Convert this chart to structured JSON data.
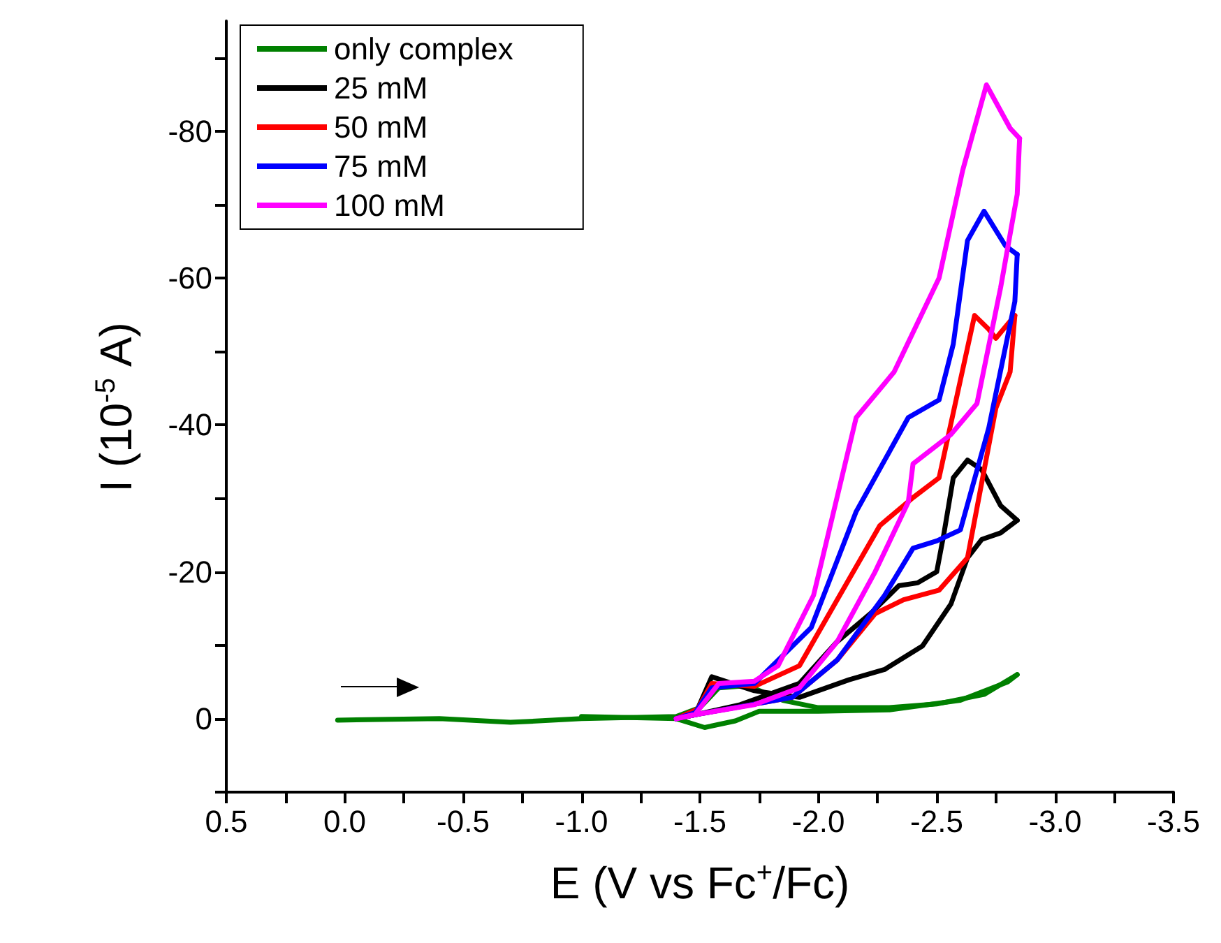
{
  "chart_data": {
    "type": "line",
    "xlabel": "E (V vs Fc$^{+}$/Fc)",
    "ylabel": "I (10$^{-5}$ A)",
    "xlim": [
      0.5,
      -3.5
    ],
    "xticks": [
      {
        "value": 0.5,
        "label": "0.5"
      },
      {
        "value": 0.25,
        "label": null
      },
      {
        "value": 0,
        "label": "0.0"
      },
      {
        "value": -0.25,
        "label": null
      },
      {
        "value": -0.5,
        "label": "-0.5"
      },
      {
        "value": -0.75,
        "label": null
      },
      {
        "value": -1,
        "label": "-1.0"
      },
      {
        "value": -1.25,
        "label": null
      },
      {
        "value": -1.5,
        "label": "-1.5"
      },
      {
        "value": -1.75,
        "label": null
      },
      {
        "value": -2,
        "label": "-2.0"
      },
      {
        "value": -2.25,
        "label": null
      },
      {
        "value": -2.5,
        "label": "-2.5"
      },
      {
        "value": -2.75,
        "label": null
      },
      {
        "value": -3,
        "label": "-3.0"
      },
      {
        "value": -3.25,
        "label": null
      },
      {
        "value": -3.5,
        "label": "-3.5"
      }
    ],
    "ylim": [
      10,
      -95
    ],
    "yticks": [
      {
        "value": 10,
        "label": null
      },
      0,
      {
        "value": -10,
        "label": null
      },
      -20,
      {
        "value": -30,
        "label": null
      },
      -40,
      {
        "value": -50,
        "label": null
      },
      -60,
      {
        "value": -70,
        "label": null
      },
      -80,
      {
        "value": -90,
        "label": null
      }
    ],
    "grid": false,
    "legend": "top left",
    "marker": "none",
    "line_style": "solid",
    "series": [
      {
        "name": "only complex",
        "color": "#008000",
        "x": [
          0.03,
          -0.4,
          -0.7,
          -1.0,
          -1.4,
          -1.5,
          -1.58,
          -1.7,
          -1.85,
          -2.0,
          -2.3,
          -2.5,
          -2.7,
          -2.84
        ],
        "values": [
          0.2,
          0,
          0.5,
          0,
          -0.3,
          -1.5,
          -4.2,
          -4.5,
          -2.5,
          -1.5,
          -1.5,
          -2,
          -3.3,
          -6
        ]
      },
      {
        "color": "#008000",
        "x": [
          -2.84,
          -2.8,
          -2.6,
          -2.3,
          -2.0,
          -1.75,
          -1.65,
          -1.52,
          -1.4,
          -1.0
        ],
        "values": [
          -6,
          -5,
          -2.5,
          -1.2,
          -1,
          -1,
          0.3,
          1.2,
          0,
          -0.3
        ]
      },
      {
        "name": "25 mM",
        "color": "#000000",
        "x": [
          -1.4,
          -1.49,
          -1.55,
          -1.73,
          -1.92,
          -2.13,
          -2.28,
          -2.44,
          -2.56,
          -2.63,
          -2.69,
          -2.77,
          -2.84
        ],
        "values": [
          0,
          -1.3,
          -5.7,
          -3.8,
          -2.9,
          -5.3,
          -6.7,
          -9.9,
          -15.6,
          -21.9,
          -24.4,
          -25.3,
          -27
        ]
      },
      {
        "color": "#000000",
        "x": [
          -2.84,
          -2.77,
          -2.69,
          -2.63,
          -2.57,
          -2.53,
          -2.5,
          -2.42,
          -2.34,
          -2.22,
          -2.08,
          -1.92,
          -1.67,
          -1.49,
          -1.4
        ],
        "values": [
          -27,
          -29,
          -33.9,
          -35.2,
          -32.8,
          -25.1,
          -20,
          -18.5,
          -18.1,
          -14.3,
          -10.5,
          -4.8,
          -1.9,
          -0.6,
          0
        ]
      },
      {
        "name": "50 mM",
        "color": "#ff0000",
        "x": [
          -1.4,
          -1.49,
          -1.55,
          -1.73,
          -1.92,
          -2.08,
          -2.26,
          -2.4,
          -2.51,
          -2.6,
          -2.66,
          -2.72,
          -2.75,
          -2.83
        ],
        "values": [
          0,
          -1.3,
          -4.8,
          -4.4,
          -7.2,
          -16.2,
          -26.3,
          -30.1,
          -32.8,
          -46.1,
          -54.9,
          -53,
          -51.8,
          -54.9
        ]
      },
      {
        "color": "#ff0000",
        "x": [
          -2.83,
          -2.81,
          -2.75,
          -2.63,
          -2.51,
          -2.36,
          -2.24,
          -2.08,
          -1.89,
          -1.49,
          -1.4
        ],
        "values": [
          -54.9,
          -47.2,
          -42.3,
          -21.9,
          -17.5,
          -16.2,
          -14.3,
          -8,
          -2.9,
          -0.6,
          0
        ]
      },
      {
        "name": "75 mM",
        "color": "#0000ff",
        "x": [
          -1.4,
          -1.48,
          -1.55,
          -1.73,
          -1.97,
          -2.16,
          -2.38,
          -2.51,
          -2.57,
          -2.63,
          -2.7,
          -2.79,
          -2.84
        ],
        "values": [
          0,
          -0.8,
          -4.2,
          -4.8,
          -12.4,
          -28.2,
          -41,
          -43.4,
          -51,
          -65.1,
          -69.1,
          -64.4,
          -63.2
        ]
      },
      {
        "color": "#0000ff",
        "x": [
          -2.84,
          -2.83,
          -2.72,
          -2.6,
          -2.5,
          -2.4,
          -2.28,
          -2.08,
          -1.89,
          -1.49,
          -1.4
        ],
        "values": [
          -63.2,
          -56.8,
          -39.6,
          -25.7,
          -24.2,
          -23.2,
          -16.8,
          -8,
          -2.9,
          -0.6,
          0
        ]
      },
      {
        "name": "100 mM",
        "color": "#ff00ff",
        "x": [
          -1.4,
          -1.48,
          -1.58,
          -1.73,
          -1.83,
          -1.98,
          -2.16,
          -2.32,
          -2.51,
          -2.61,
          -2.71,
          -2.81,
          -2.85
        ],
        "values": [
          0,
          -0.6,
          -4.8,
          -5.1,
          -7.2,
          -16.8,
          -41,
          -47.2,
          -60,
          -74.7,
          -86.3,
          -80.4,
          -79
        ]
      },
      {
        "color": "#ff00ff",
        "x": [
          -2.85,
          -2.84,
          -2.77,
          -2.67,
          -2.56,
          -2.4,
          -2.38,
          -2.24,
          -2.08,
          -1.92,
          -1.73,
          -1.49,
          -1.4
        ],
        "values": [
          -79,
          -71.4,
          -58.7,
          -42.9,
          -38.7,
          -34.7,
          -29.5,
          -20,
          -10.5,
          -4.2,
          -1.9,
          -0.6,
          0
        ]
      }
    ]
  }
}
